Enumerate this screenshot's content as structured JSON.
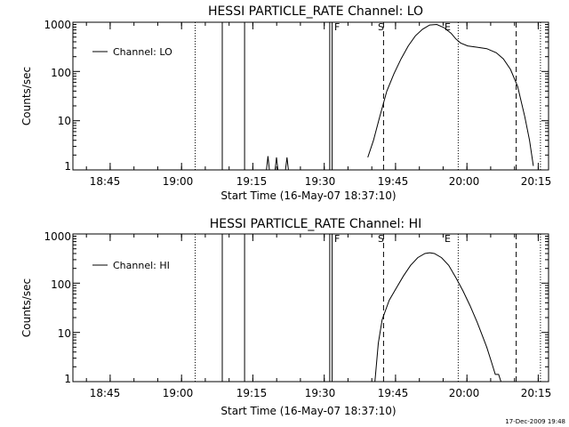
{
  "timestamp": "17-Dec-2009 19:48",
  "chart_data": [
    {
      "type": "line",
      "title": "HESSI PARTICLE_RATE Channel: LO",
      "xlabel": "Start Time (16-May-07 18:37:10)",
      "ylabel": "Counts/sec",
      "xlim_minutes": [
        0,
        100
      ],
      "ylim": [
        1,
        1000
      ],
      "yscale": "log",
      "x_tick_labels": [
        "18:45",
        "19:00",
        "19:15",
        "19:30",
        "19:45",
        "20:00",
        "20:15"
      ],
      "y_tick_labels": [
        "1",
        "10",
        "100",
        "1000"
      ],
      "y_tick_values": [
        1,
        10,
        100,
        1000
      ],
      "legend": "Channel: LO",
      "markers": [
        "F",
        "S",
        "E"
      ],
      "series": [
        {
          "name": "Channel: LO",
          "points_min_counts": [
            [
              62.0,
              1.8
            ],
            [
              63.2,
              4
            ],
            [
              64.5,
              12
            ],
            [
              66.0,
              40
            ],
            [
              67.5,
              90
            ],
            [
              69.0,
              180
            ],
            [
              70.5,
              330
            ],
            [
              72.0,
              530
            ],
            [
              73.5,
              720
            ],
            [
              75.0,
              880
            ],
            [
              76.5,
              900
            ],
            [
              78.0,
              780
            ],
            [
              79.5,
              600
            ],
            [
              80.5,
              460
            ],
            [
              81.5,
              380
            ],
            [
              83.0,
              330
            ],
            [
              85.0,
              310
            ],
            [
              87.0,
              290
            ],
            [
              89.0,
              240
            ],
            [
              90.5,
              180
            ],
            [
              92.0,
              110
            ],
            [
              93.5,
              50
            ],
            [
              95.0,
              12
            ],
            [
              96.0,
              4
            ],
            [
              96.8,
              1.2
            ]
          ]
        },
        {
          "name": "spike-1",
          "points_min_counts": [
            [
              40.7,
              1
            ],
            [
              41.0,
              1.9
            ],
            [
              41.3,
              1
            ]
          ]
        },
        {
          "name": "spike-2",
          "points_min_counts": [
            [
              42.5,
              1
            ],
            [
              42.8,
              1.8
            ],
            [
              43.1,
              1
            ]
          ]
        },
        {
          "name": "spike-3",
          "points_min_counts": [
            [
              44.7,
              1
            ],
            [
              45.0,
              1.8
            ],
            [
              45.3,
              1
            ]
          ]
        }
      ],
      "vertical_lines": [
        {
          "style": "dotted",
          "at_min": 25.7
        },
        {
          "style": "solid",
          "at_min": 31.4
        },
        {
          "style": "solid",
          "at_min": 36.1
        },
        {
          "style": "solid",
          "at_min": 54.0
        },
        {
          "style": "solid",
          "at_min": 54.5
        },
        {
          "style": "dashed",
          "at_min": 65.3
        },
        {
          "style": "dotted",
          "at_min": 81.0
        },
        {
          "style": "dashed",
          "at_min": 93.2
        },
        {
          "style": "dotted",
          "at_min": 98.3
        }
      ]
    },
    {
      "type": "line",
      "title": "HESSI PARTICLE_RATE Channel: HI",
      "xlabel": "Start Time (16-May-07 18:37:10)",
      "ylabel": "Counts/sec",
      "xlim_minutes": [
        0,
        100
      ],
      "ylim": [
        1,
        1000
      ],
      "yscale": "log",
      "x_tick_labels": [
        "18:45",
        "19:00",
        "19:15",
        "19:30",
        "19:45",
        "20:00",
        "20:15"
      ],
      "y_tick_labels": [
        "1",
        "10",
        "100",
        "1000"
      ],
      "y_tick_values": [
        1,
        10,
        100,
        1000
      ],
      "legend": "Channel: HI",
      "markers": [
        "F",
        "S",
        "E"
      ],
      "series": [
        {
          "name": "Channel: HI",
          "points_min_counts": [
            [
              63.5,
              1
            ],
            [
              64.2,
              6
            ],
            [
              65.0,
              18
            ],
            [
              66.5,
              45
            ],
            [
              68.0,
              80
            ],
            [
              69.5,
              140
            ],
            [
              71.0,
              230
            ],
            [
              72.5,
              330
            ],
            [
              74.0,
              400
            ],
            [
              75.0,
              415
            ],
            [
              76.0,
              400
            ],
            [
              77.5,
              330
            ],
            [
              79.0,
              230
            ],
            [
              80.5,
              130
            ],
            [
              82.0,
              70
            ],
            [
              83.5,
              35
            ],
            [
              85.0,
              16
            ],
            [
              86.0,
              9
            ],
            [
              87.0,
              5
            ],
            [
              88.0,
              2.5
            ],
            [
              88.8,
              1.4
            ],
            [
              89.5,
              1.4
            ],
            [
              90.0,
              1
            ]
          ]
        }
      ],
      "vertical_lines": [
        {
          "style": "dotted",
          "at_min": 25.7
        },
        {
          "style": "solid",
          "at_min": 31.4
        },
        {
          "style": "solid",
          "at_min": 36.1
        },
        {
          "style": "solid",
          "at_min": 54.0
        },
        {
          "style": "solid",
          "at_min": 54.5
        },
        {
          "style": "dashed",
          "at_min": 65.3
        },
        {
          "style": "dotted",
          "at_min": 81.0
        },
        {
          "style": "dashed",
          "at_min": 93.2
        },
        {
          "style": "dotted",
          "at_min": 98.3
        }
      ]
    }
  ]
}
